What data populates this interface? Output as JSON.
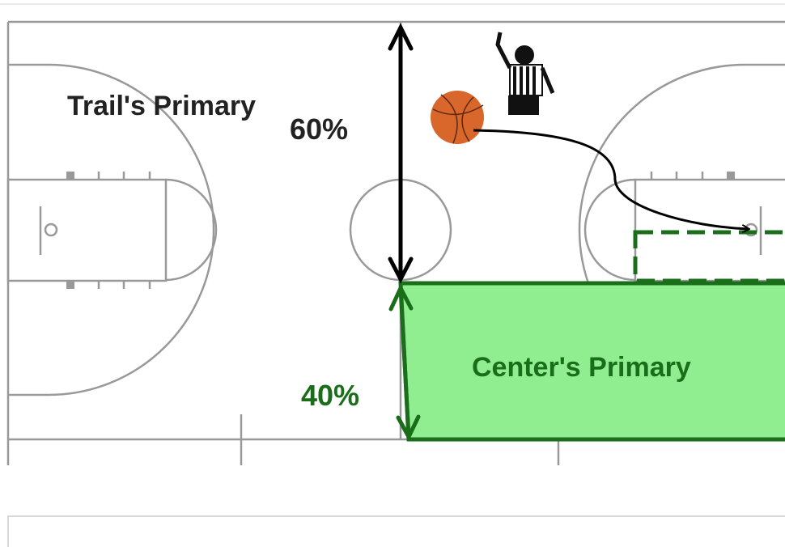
{
  "zones": [
    {
      "label": "Trail's Primary",
      "share": "60%"
    },
    {
      "label": "Center's Primary",
      "share": "40%"
    }
  ]
}
